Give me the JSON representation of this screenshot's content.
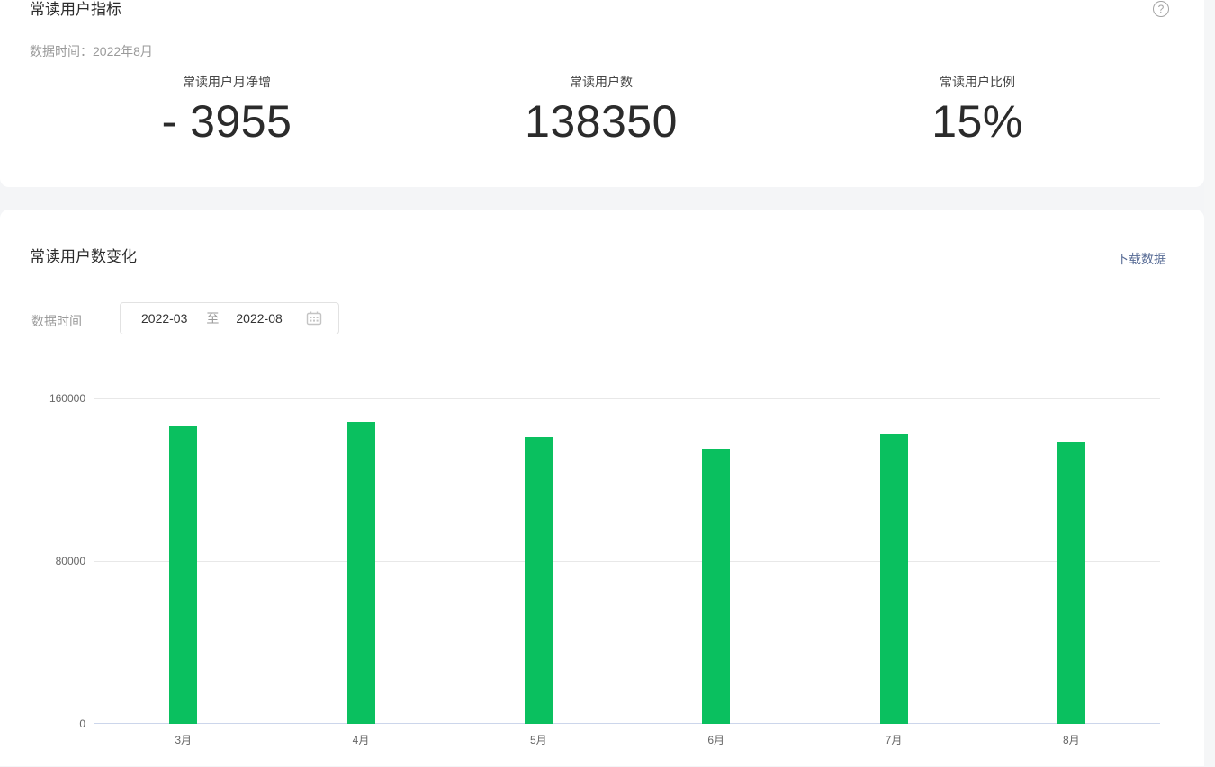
{
  "metrics_card": {
    "title": "常读用户指标",
    "data_time": "数据时间：2022年8月",
    "help_icon": "question-mark-circle",
    "metrics": [
      {
        "label": "常读用户月净增",
        "value": "- 3955"
      },
      {
        "label": "常读用户数",
        "value": "138350"
      },
      {
        "label": "常读用户比例",
        "value": "15%"
      }
    ]
  },
  "chart_card": {
    "title": "常读用户数变化",
    "download_link": "下载数据",
    "date_filter": {
      "label": "数据时间",
      "start": "2022-03",
      "separator": "至",
      "end": "2022-08",
      "calendar_icon": "calendar-icon"
    }
  },
  "chart_data": {
    "type": "bar",
    "title": "常读用户数变化",
    "categories": [
      "3月",
      "4月",
      "5月",
      "6月",
      "7月",
      "8月"
    ],
    "values": [
      146300,
      148500,
      141000,
      135200,
      142305,
      138350
    ],
    "yticks": [
      0,
      80000,
      160000
    ],
    "ylim": [
      0,
      160000
    ],
    "xlabel": "",
    "ylabel": "",
    "grid": "horizontal",
    "legend": "none",
    "bar_color": "#0AC05F"
  },
  "colors": {
    "accent_green": "#0AC05F",
    "link_blue": "#576b95",
    "axis_line": "#ccd6eb",
    "gridline": "#e8e8e8",
    "page_bg": "#f4f5f7"
  }
}
